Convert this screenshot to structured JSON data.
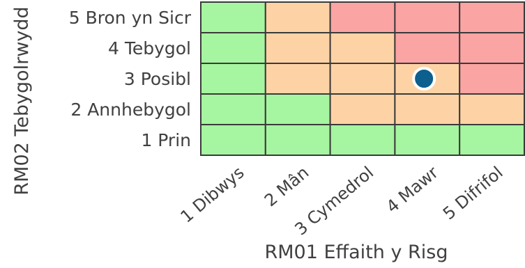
{
  "chart_data": {
    "type": "heatmap",
    "title": "",
    "xlabel": "RM01 Effaith y Risg",
    "ylabel": "RM02 Tebygolrwydd",
    "x_categories": [
      "1 Dibwys",
      "2 Mân",
      "3 Cymedrol",
      "4 Mawr",
      "5 Difrifol"
    ],
    "y_categories": [
      "1 Prin",
      "2 Annhebygol",
      "3 Posibl",
      "4 Tebygol",
      "5 Bron yn Sicr"
    ],
    "grid_top_to_bottom": [
      [
        "green",
        "orange",
        "red",
        "red",
        "red"
      ],
      [
        "green",
        "orange",
        "orange",
        "red",
        "red"
      ],
      [
        "green",
        "orange",
        "orange",
        "orange",
        "red"
      ],
      [
        "green",
        "green",
        "orange",
        "orange",
        "orange"
      ],
      [
        "green",
        "green",
        "green",
        "green",
        "green"
      ]
    ],
    "colors": {
      "green": "#a6f5a0",
      "orange": "#fdd3a6",
      "red": "#fba4a4"
    },
    "marker": {
      "x": "4 Mawr",
      "y": "3 Posibl",
      "color": "#0d5f8d"
    }
  }
}
